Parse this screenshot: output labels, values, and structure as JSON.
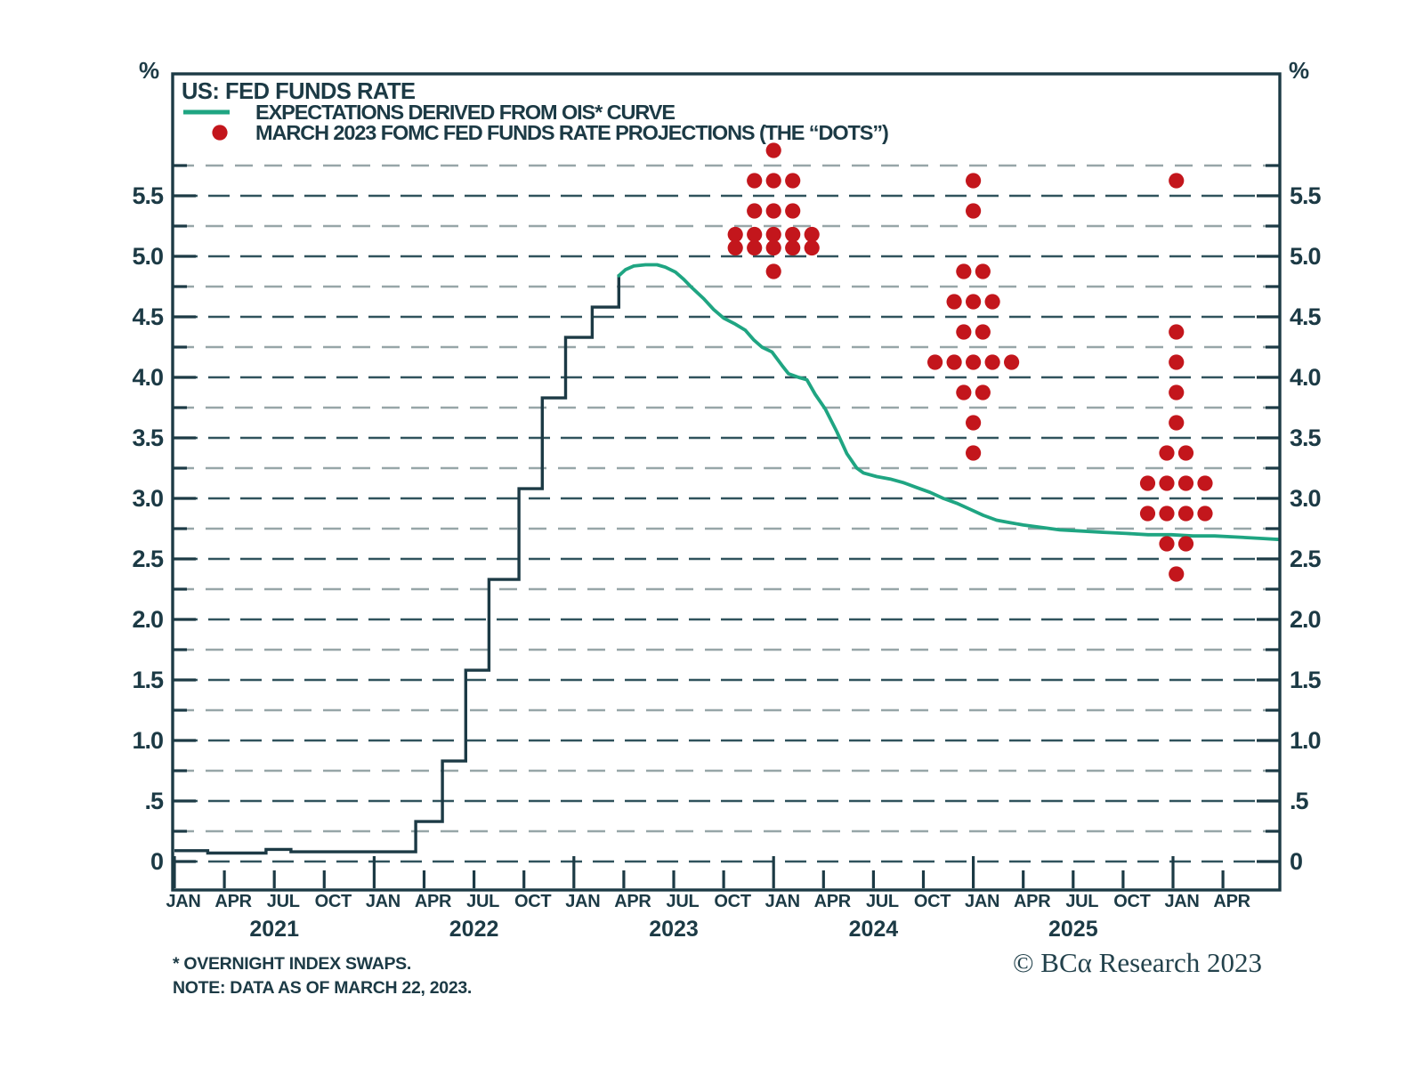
{
  "title": "US: FED FUNDS RATE",
  "legend": {
    "ois_label": "EXPECTATIONS DERIVED FROM OIS* CURVE",
    "dots_label": "MARCH 2023 FOMC FED FUNDS RATE PROJECTIONS (THE “DOTS”)"
  },
  "footnotes": {
    "line1": "*  OVERNIGHT INDEX SWAPS.",
    "line2": "NOTE: DATA AS OF MARCH 22, 2023."
  },
  "copyright": "© BCα Research 2023",
  "y_axis": {
    "unit_left": "%",
    "unit_right": "%",
    "labels": [
      "5.5",
      "5.0",
      "4.5",
      "4.0",
      "3.5",
      "3.0",
      "2.5",
      "2.0",
      "1.5",
      "1.0",
      ".5",
      "0"
    ],
    "label_values": [
      5.5,
      5.0,
      4.5,
      4.0,
      3.5,
      3.0,
      2.5,
      2.0,
      1.5,
      1.0,
      0.5,
      0
    ],
    "grid_step": 0.25,
    "grid_top": 5.75,
    "grid_bottom": 0
  },
  "x_axis": {
    "month_labels": [
      "JAN",
      "APR",
      "JUL",
      "OCT",
      "JAN",
      "APR",
      "JUL",
      "OCT",
      "JAN",
      "APR",
      "JUL",
      "OCT",
      "JAN",
      "APR",
      "JUL",
      "OCT",
      "JAN",
      "APR",
      "JUL",
      "OCT",
      "JAN",
      "APR"
    ],
    "year_labels": [
      "2021",
      "2022",
      "2023",
      "2024",
      "2025"
    ]
  },
  "colors": {
    "dark": "#1c3a45",
    "green": "#1fa582",
    "red": "#c3161c",
    "grid_minor": "#97a6a8",
    "grid_major": "#30535d",
    "background": "#ffffff"
  },
  "chart_data": {
    "type": "line",
    "title": "US: FED FUNDS RATE",
    "x_domain_months_since_jan2021": [
      0,
      66.4
    ],
    "ylim": [
      0,
      6.5
    ],
    "grid": "dashed horizontal every 0.25, labels every 0.5",
    "legend_position": "top-left inside plot",
    "series": [
      {
        "name": "FED FUNDS RATE (actual, step line)",
        "type": "step",
        "color_key": "dark",
        "points_month_pct": [
          [
            0,
            0.09
          ],
          [
            2,
            0.07
          ],
          [
            5.5,
            0.1
          ],
          [
            7,
            0.08
          ],
          [
            14.5,
            0.33
          ],
          [
            16.1,
            0.83
          ],
          [
            17.5,
            1.58
          ],
          [
            18.9,
            2.33
          ],
          [
            20.7,
            3.08
          ],
          [
            22.1,
            3.83
          ],
          [
            23.5,
            4.33
          ],
          [
            25.1,
            4.58
          ],
          [
            26.7,
            4.85
          ]
        ]
      },
      {
        "name": "EXPECTATIONS DERIVED FROM OIS* CURVE",
        "type": "line",
        "color_key": "green",
        "points_month_pct": [
          [
            26.7,
            4.84
          ],
          [
            27.1,
            4.89
          ],
          [
            27.6,
            4.92
          ],
          [
            28.3,
            4.93
          ],
          [
            29.0,
            4.93
          ],
          [
            29.5,
            4.91
          ],
          [
            30.1,
            4.87
          ],
          [
            30.6,
            4.81
          ],
          [
            31.1,
            4.74
          ],
          [
            31.8,
            4.65
          ],
          [
            32.4,
            4.56
          ],
          [
            33.0,
            4.49
          ],
          [
            33.7,
            4.44
          ],
          [
            34.3,
            4.39
          ],
          [
            34.8,
            4.31
          ],
          [
            35.3,
            4.25
          ],
          [
            35.9,
            4.21
          ],
          [
            36.5,
            4.1
          ],
          [
            36.9,
            4.03
          ],
          [
            37.5,
            4.0
          ],
          [
            38.0,
            3.98
          ],
          [
            38.5,
            3.86
          ],
          [
            39.1,
            3.74
          ],
          [
            39.8,
            3.55
          ],
          [
            40.4,
            3.37
          ],
          [
            41.0,
            3.25
          ],
          [
            41.4,
            3.21
          ],
          [
            42.2,
            3.18
          ],
          [
            43.0,
            3.16
          ],
          [
            43.8,
            3.13
          ],
          [
            44.6,
            3.09
          ],
          [
            45.4,
            3.05
          ],
          [
            46.2,
            3.0
          ],
          [
            47.0,
            2.96
          ],
          [
            47.8,
            2.91
          ],
          [
            48.6,
            2.86
          ],
          [
            49.4,
            2.82
          ],
          [
            50.2,
            2.8
          ],
          [
            51.0,
            2.78
          ],
          [
            52.1,
            2.76
          ],
          [
            53.2,
            2.74
          ],
          [
            54.5,
            2.73
          ],
          [
            55.8,
            2.72
          ],
          [
            57.2,
            2.71
          ],
          [
            58.5,
            2.7
          ],
          [
            59.9,
            2.7
          ],
          [
            61.2,
            2.69
          ],
          [
            62.5,
            2.69
          ],
          [
            63.9,
            2.68
          ],
          [
            65.2,
            2.67
          ],
          [
            66.4,
            2.66
          ]
        ]
      },
      {
        "name": "MARCH 2023 FOMC FED FUNDS RATE PROJECTIONS (THE “DOTS”)",
        "type": "scatter",
        "color_key": "red",
        "groups": [
          {
            "projection_year": 2023,
            "x_month": 36,
            "dots": [
              {
                "rate": 5.875,
                "count": 1
              },
              {
                "rate": 5.625,
                "count": 3
              },
              {
                "rate": 5.375,
                "count": 3
              },
              {
                "rate": 5.125,
                "count": 10
              },
              {
                "rate": 4.875,
                "count": 1
              }
            ]
          },
          {
            "projection_year": 2024,
            "x_month": 48,
            "dots": [
              {
                "rate": 5.625,
                "count": 1
              },
              {
                "rate": 5.375,
                "count": 1
              },
              {
                "rate": 4.875,
                "count": 2
              },
              {
                "rate": 4.625,
                "count": 3
              },
              {
                "rate": 4.375,
                "count": 2
              },
              {
                "rate": 4.125,
                "count": 5
              },
              {
                "rate": 3.875,
                "count": 2
              },
              {
                "rate": 3.625,
                "count": 1
              },
              {
                "rate": 3.375,
                "count": 1
              }
            ]
          },
          {
            "projection_year": 2025,
            "x_month": 60.2,
            "dots": [
              {
                "rate": 5.625,
                "count": 1
              },
              {
                "rate": 4.375,
                "count": 1
              },
              {
                "rate": 4.125,
                "count": 1
              },
              {
                "rate": 3.875,
                "count": 1
              },
              {
                "rate": 3.625,
                "count": 1
              },
              {
                "rate": 3.375,
                "count": 2
              },
              {
                "rate": 3.125,
                "count": 4
              },
              {
                "rate": 2.875,
                "count": 4
              },
              {
                "rate": 2.625,
                "count": 2
              },
              {
                "rate": 2.375,
                "count": 1
              }
            ]
          }
        ]
      }
    ]
  }
}
